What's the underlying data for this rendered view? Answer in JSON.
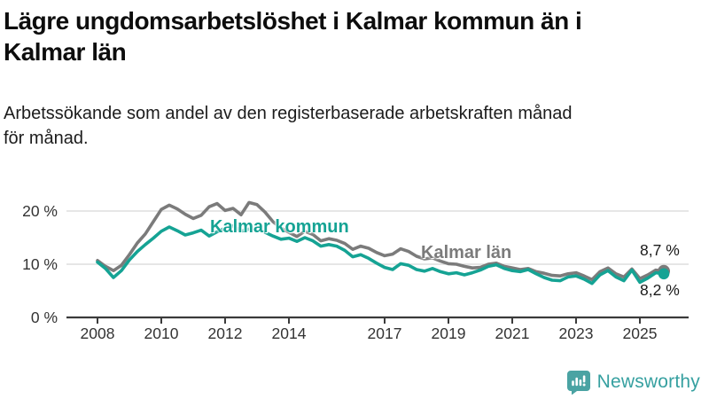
{
  "header": {
    "title": "Lägre ungdomsarbetslöshet i Kalmar kommun än i\nKalmar län",
    "subtitle": "Arbetssökande som andel av den registerbaserade arbetskraften månad\nför månad."
  },
  "chart_data": {
    "type": "line",
    "title": "Lägre ungdomsarbetslöshet i Kalmar kommun än i Kalmar län",
    "xlabel": "",
    "ylabel": "",
    "unit": "%",
    "grid": true,
    "legend_position": "inline-labels",
    "x_axis": {
      "ticks": [
        2008,
        2010,
        2012,
        2014,
        2017,
        2019,
        2021,
        2023,
        2025
      ],
      "range": [
        2007.0,
        2026.5
      ]
    },
    "y_axis": {
      "ticks": [
        {
          "value": 20,
          "label": "20 %"
        },
        {
          "value": 10,
          "label": "10 %"
        },
        {
          "value": 0,
          "label": "0 %"
        }
      ],
      "range": [
        0,
        27
      ]
    },
    "x": [
      2008.0,
      2008.25,
      2008.5,
      2008.75,
      2009.0,
      2009.25,
      2009.5,
      2009.75,
      2010.0,
      2010.25,
      2010.5,
      2010.75,
      2011.0,
      2011.25,
      2011.5,
      2011.75,
      2012.0,
      2012.25,
      2012.5,
      2012.75,
      2013.0,
      2013.25,
      2013.5,
      2013.75,
      2014.0,
      2014.25,
      2014.5,
      2014.75,
      2015.0,
      2015.25,
      2015.5,
      2015.75,
      2016.0,
      2016.25,
      2016.5,
      2016.75,
      2017.0,
      2017.25,
      2017.5,
      2017.75,
      2018.0,
      2018.25,
      2018.5,
      2018.75,
      2019.0,
      2019.25,
      2019.5,
      2019.75,
      2020.0,
      2020.25,
      2020.5,
      2020.75,
      2021.0,
      2021.25,
      2021.5,
      2021.75,
      2022.0,
      2022.25,
      2022.5,
      2022.75,
      2023.0,
      2023.25,
      2023.5,
      2023.75,
      2024.0,
      2024.25,
      2024.5,
      2024.75,
      2025.0,
      2025.25,
      2025.5,
      2025.75
    ],
    "series": [
      {
        "name": "Kalmar län",
        "color": "#7b7b7b",
        "end_label": "8,7 %",
        "end_value": 8.7,
        "values": [
          10.7,
          9.6,
          8.8,
          9.8,
          11.8,
          14.0,
          15.7,
          18.0,
          20.3,
          21.1,
          20.4,
          19.4,
          18.6,
          19.2,
          20.8,
          21.4,
          20.1,
          20.5,
          19.3,
          21.6,
          21.2,
          19.8,
          18.0,
          16.8,
          16.0,
          15.2,
          16.2,
          15.6,
          14.4,
          14.8,
          14.5,
          13.9,
          12.8,
          13.4,
          13.0,
          12.2,
          11.6,
          11.9,
          12.9,
          12.4,
          11.5,
          11.0,
          11.2,
          10.6,
          10.1,
          10.0,
          9.6,
          9.3,
          9.4,
          10.0,
          10.2,
          9.6,
          9.3,
          9.0,
          9.2,
          8.6,
          8.3,
          7.9,
          7.8,
          8.2,
          8.4,
          7.8,
          7.1,
          8.6,
          9.3,
          8.2,
          7.6,
          9.1,
          7.3,
          8.0,
          8.9,
          8.7
        ]
      },
      {
        "name": "Kalmar kommun",
        "color": "#15a394",
        "end_label": "8,2 %",
        "end_value": 8.2,
        "values": [
          10.4,
          9.2,
          7.5,
          8.8,
          10.8,
          12.4,
          13.7,
          14.9,
          16.2,
          17.0,
          16.3,
          15.5,
          15.9,
          16.4,
          15.3,
          16.1,
          16.8,
          17.2,
          16.2,
          16.6,
          16.9,
          16.0,
          15.3,
          14.7,
          14.9,
          14.3,
          15.0,
          14.4,
          13.4,
          13.7,
          13.4,
          12.6,
          11.4,
          11.8,
          11.1,
          10.2,
          9.4,
          9.0,
          10.1,
          9.8,
          9.0,
          8.7,
          9.2,
          8.6,
          8.2,
          8.4,
          8.0,
          8.4,
          8.9,
          9.6,
          9.9,
          9.2,
          8.8,
          8.6,
          9.0,
          8.2,
          7.5,
          7.0,
          6.9,
          7.6,
          7.8,
          7.2,
          6.4,
          8.0,
          8.8,
          7.6,
          6.9,
          8.9,
          6.6,
          7.4,
          8.4,
          8.2
        ]
      }
    ],
    "colors": {
      "grid": "#d8d8d8",
      "axis": "#3b3b3b",
      "tick_text": "#333333"
    }
  },
  "footer": {
    "brand": "Newsworthy",
    "brand_color": "#36a0a0",
    "logo_icon": "bar-chart-speech-bubble-icon"
  }
}
